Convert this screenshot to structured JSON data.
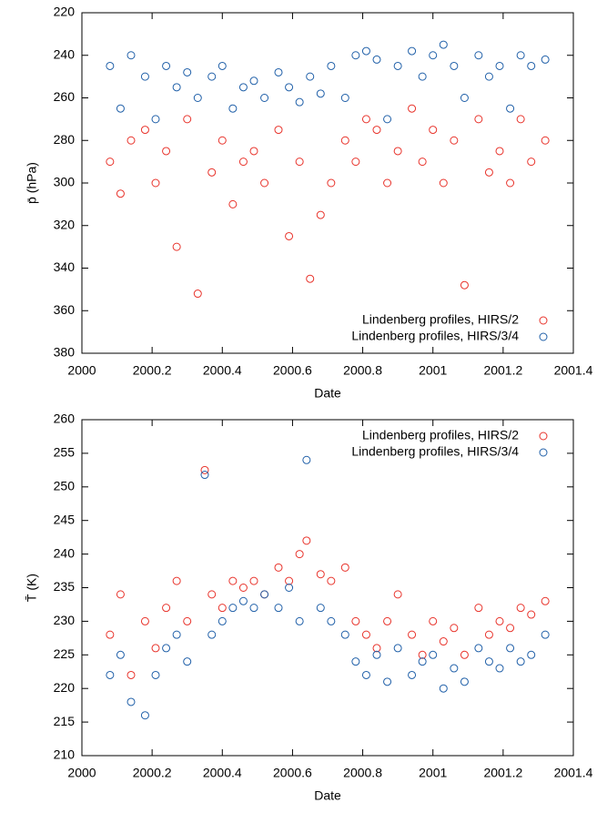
{
  "chart_data": [
    {
      "type": "scatter",
      "y_label": "p̄ (hPa)",
      "x_label": "Date",
      "xlim": [
        2000,
        2001.4
      ],
      "xticks": [
        2000,
        2000.2,
        2000.4,
        2000.6,
        2000.8,
        2001,
        2001.2,
        2001.4
      ],
      "ylim": [
        220,
        380
      ],
      "yticks": [
        220,
        240,
        260,
        280,
        300,
        320,
        340,
        360,
        380
      ],
      "invert_y": true,
      "legend": "lower right",
      "x": [
        2000.08,
        2000.11,
        2000.14,
        2000.18,
        2000.21,
        2000.24,
        2000.27,
        2000.3,
        2000.33,
        2000.37,
        2000.4,
        2000.43,
        2000.46,
        2000.49,
        2000.52,
        2000.56,
        2000.59,
        2000.62,
        2000.65,
        2000.68,
        2000.71,
        2000.75,
        2000.78,
        2000.81,
        2000.84,
        2000.87,
        2000.9,
        2000.94,
        2000.97,
        2001.0,
        2001.03,
        2001.06,
        2001.09,
        2001.13,
        2001.16,
        2001.19,
        2001.22,
        2001.25,
        2001.28,
        2001.32
      ],
      "series": [
        {
          "name": "Lindenberg profiles, HIRS/2",
          "color": "#e8322a",
          "values": [
            290,
            305,
            280,
            275,
            300,
            285,
            330,
            270,
            352,
            295,
            280,
            310,
            290,
            285,
            300,
            275,
            325,
            290,
            345,
            315,
            300,
            280,
            290,
            270,
            275,
            300,
            285,
            265,
            290,
            275,
            300,
            280,
            348,
            270,
            295,
            285,
            300,
            270,
            290,
            280
          ]
        },
        {
          "name": "Lindenberg profiles, HIRS/3/4",
          "color": "#1f5fa8",
          "values": [
            245,
            265,
            240,
            250,
            270,
            245,
            255,
            248,
            260,
            250,
            245,
            265,
            255,
            252,
            260,
            248,
            255,
            262,
            250,
            258,
            245,
            260,
            240,
            238,
            242,
            270,
            245,
            238,
            250,
            240,
            235,
            245,
            260,
            240,
            250,
            245,
            265,
            240,
            245,
            242
          ]
        }
      ]
    },
    {
      "type": "scatter",
      "y_label": "T̄ (K)",
      "x_label": "Date",
      "xlim": [
        2000,
        2001.4
      ],
      "xticks": [
        2000,
        2000.2,
        2000.4,
        2000.6,
        2000.8,
        2001,
        2001.2,
        2001.4
      ],
      "ylim": [
        210,
        260
      ],
      "yticks": [
        210,
        215,
        220,
        225,
        230,
        235,
        240,
        245,
        250,
        255,
        260
      ],
      "invert_y": false,
      "legend": "upper right",
      "x": [
        2000.08,
        2000.11,
        2000.14,
        2000.18,
        2000.21,
        2000.24,
        2000.27,
        2000.3,
        2000.35,
        2000.37,
        2000.4,
        2000.43,
        2000.46,
        2000.49,
        2000.52,
        2000.56,
        2000.59,
        2000.62,
        2000.64,
        2000.68,
        2000.71,
        2000.75,
        2000.78,
        2000.81,
        2000.84,
        2000.87,
        2000.9,
        2000.94,
        2000.97,
        2001.0,
        2001.03,
        2001.06,
        2001.09,
        2001.13,
        2001.16,
        2001.19,
        2001.22,
        2001.25,
        2001.28,
        2001.32
      ],
      "series": [
        {
          "name": "Lindenberg profiles, HIRS/2",
          "color": "#e8322a",
          "values": [
            228,
            234,
            222,
            230,
            226,
            232,
            236,
            230,
            252.5,
            234,
            232,
            236,
            235,
            236,
            234,
            238,
            236,
            240,
            242,
            237,
            236,
            238,
            230,
            228,
            226,
            230,
            234,
            228,
            225,
            230,
            227,
            229,
            225,
            232,
            228,
            230,
            229,
            232,
            231,
            233
          ]
        },
        {
          "name": "Lindenberg profiles, HIRS/3/4",
          "color": "#1f5fa8",
          "values": [
            222,
            225,
            218,
            216,
            222,
            226,
            228,
            224,
            251.8,
            228,
            230,
            232,
            233,
            232,
            234,
            232,
            235,
            230,
            254,
            232,
            230,
            228,
            224,
            222,
            225,
            221,
            226,
            222,
            224,
            225,
            220,
            223,
            221,
            226,
            224,
            223,
            226,
            224,
            225,
            228
          ]
        }
      ]
    }
  ]
}
